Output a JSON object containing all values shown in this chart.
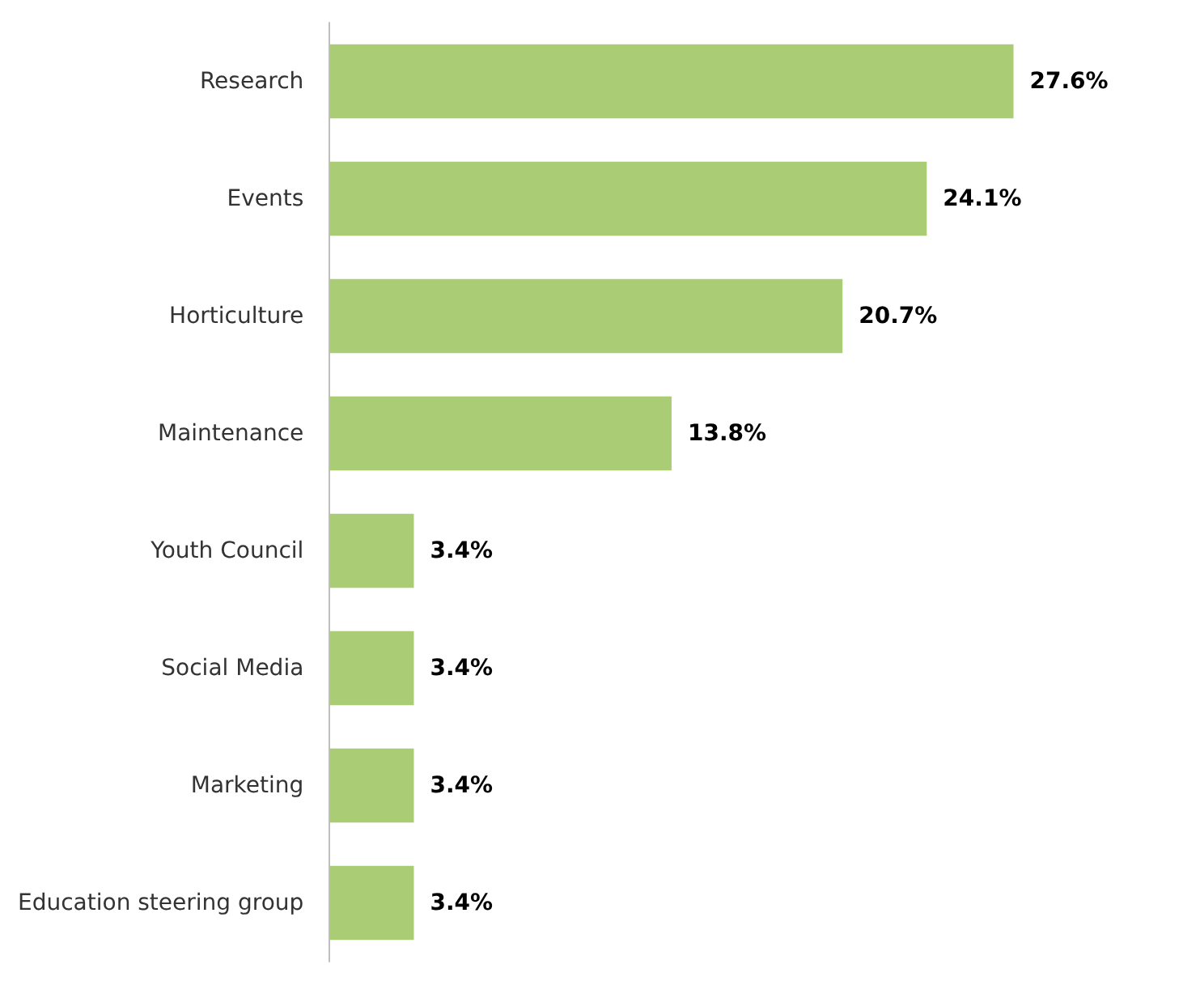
{
  "chart_data": {
    "type": "bar",
    "orientation": "horizontal",
    "categories": [
      "Research",
      "Events",
      "Horticulture",
      "Maintenance",
      "Youth Council",
      "Social Media",
      "Marketing",
      "Education steering group"
    ],
    "values": [
      27.6,
      24.1,
      20.7,
      13.8,
      3.4,
      3.4,
      3.4,
      3.4
    ],
    "value_labels": [
      "27.6%",
      "24.1%",
      "20.7%",
      "13.8%",
      "3.4%",
      "3.4%",
      "3.4%",
      "3.4%"
    ],
    "color": "#a9cc74"
  }
}
